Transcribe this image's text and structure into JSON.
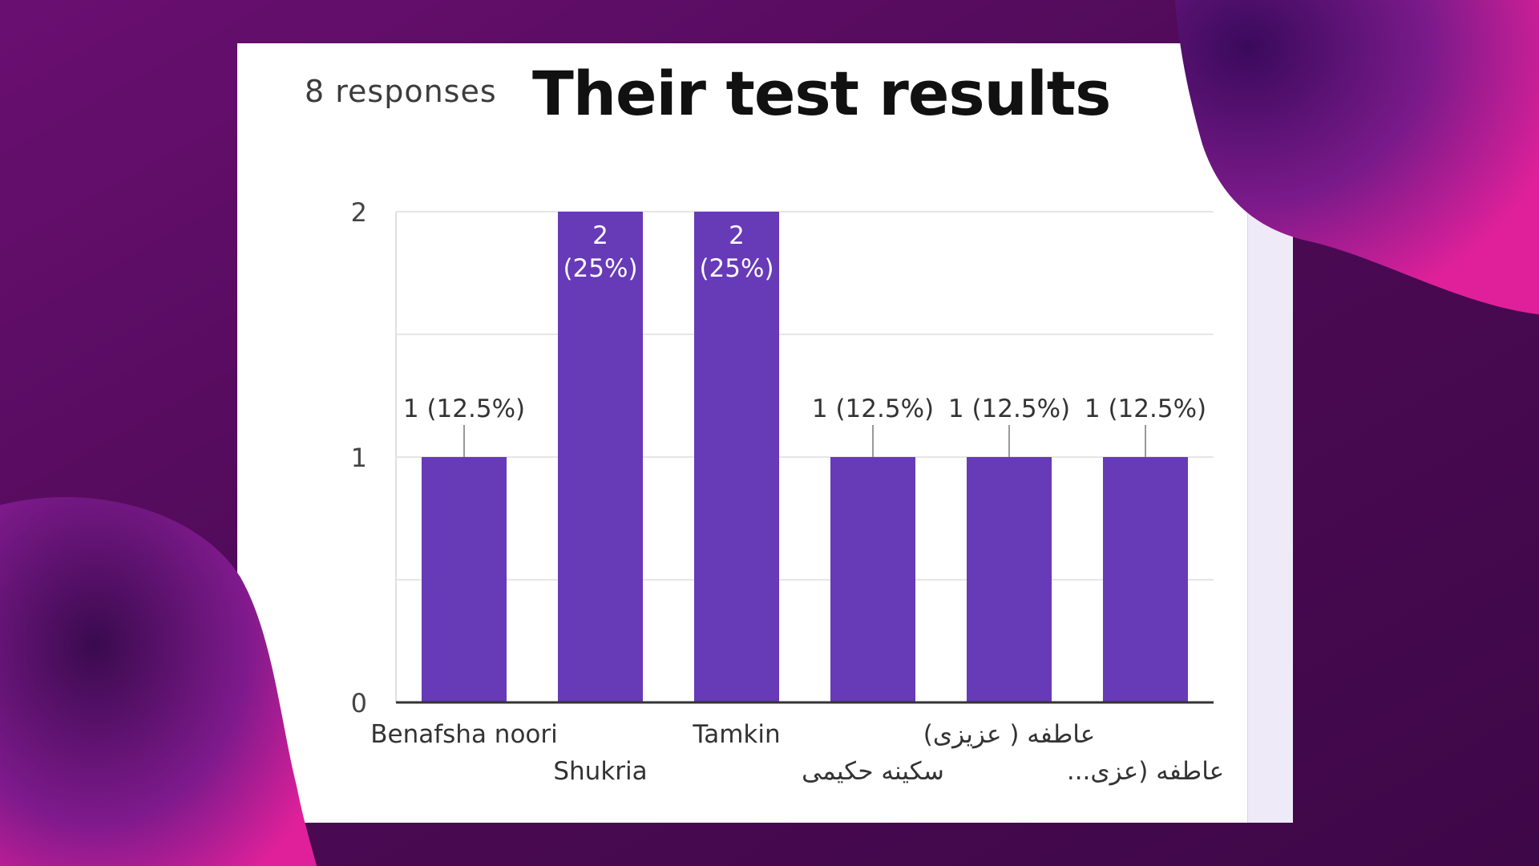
{
  "header": {
    "responses_label": "8 responses",
    "title": "Their test results"
  },
  "colors": {
    "bar": "#673ab7",
    "background": "#4a0a52",
    "accent_pink": "#d11d8c",
    "card": "#ffffff"
  },
  "chart_data": {
    "type": "bar",
    "title": "Their test results",
    "xlabel": "",
    "ylabel": "",
    "ylim": [
      0,
      2
    ],
    "yticks": [
      "0",
      "1",
      "2"
    ],
    "grid": true,
    "categories": [
      "Benafsha noori",
      "Shukria",
      "Tamkin",
      "سکینه حکیمی",
      "عاطفه ( عزیزی)",
      "...عاطفه (عزی"
    ],
    "values": [
      1,
      2,
      2,
      1,
      1,
      1
    ],
    "data_labels": [
      "1 (12.5%)",
      "2\n(25%)",
      "2\n(25%)",
      "1 (12.5%)",
      "1 (12.5%)",
      "1 (12.5%)"
    ]
  }
}
